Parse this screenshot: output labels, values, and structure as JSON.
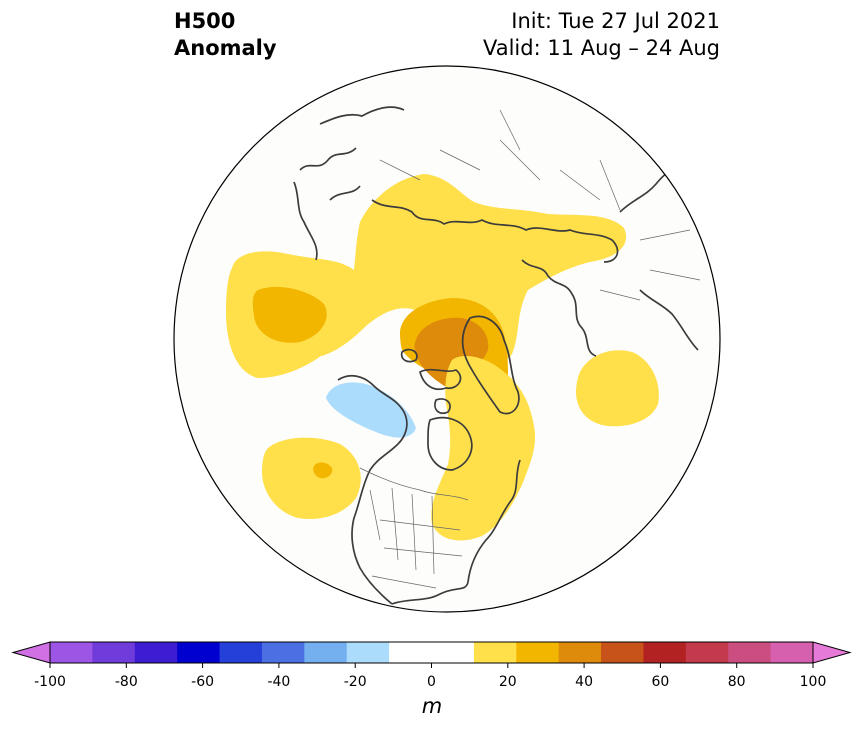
{
  "title": {
    "variable": "H500",
    "field": "Anomaly",
    "init": "Init: Tue 27 Jul 2021",
    "valid": "Valid: 11 Aug – 24 Aug"
  },
  "colorbar": {
    "unit": "m",
    "min": -100,
    "max": 100,
    "step": 10,
    "tick_labels": [
      "-100",
      "-80",
      "-60",
      "-40",
      "-20",
      "0",
      "20",
      "40",
      "60",
      "80",
      "100"
    ],
    "colors": [
      "#9d55e6",
      "#6f3bda",
      "#3e1cd2",
      "#0000cf",
      "#2440d9",
      "#4c70e4",
      "#74aff0",
      "#acdcfc",
      "#ffffff",
      "#ffffff",
      "#ffe04a",
      "#f2b600",
      "#de8a0a",
      "#c8531a",
      "#b22222",
      "#c23a4b",
      "#cb4e80",
      "#d660ad"
    ],
    "extend_low_color": "#d070e4",
    "extend_high_color": "#e57ad8"
  },
  "map": {
    "projection": "north-polar-stereographic",
    "anomaly_regions": [
      {
        "name": "anomaly-north-pacific-positive",
        "value": 20,
        "color": "#ffe04a"
      },
      {
        "name": "anomaly-north-pacific-core",
        "value": 30,
        "color": "#f2b600"
      },
      {
        "name": "anomaly-siberia-arctic-positive",
        "value": 20,
        "color": "#ffe04a"
      },
      {
        "name": "anomaly-canadian-arctic-greenland",
        "value": 30,
        "color": "#f2b600"
      },
      {
        "name": "anomaly-canadian-arctic-core",
        "value": 40,
        "color": "#de8a0a"
      },
      {
        "name": "anomaly-eastern-north-america",
        "value": 20,
        "color": "#ffe04a"
      },
      {
        "name": "anomaly-northeast-pacific-positive",
        "value": 20,
        "color": "#ffe04a"
      },
      {
        "name": "anomaly-northeast-pacific-core",
        "value": 30,
        "color": "#f2b600"
      },
      {
        "name": "anomaly-europe-positive",
        "value": 20,
        "color": "#ffe04a"
      },
      {
        "name": "anomaly-alaska-negative",
        "value": -20,
        "color": "#acdcfc"
      }
    ]
  }
}
